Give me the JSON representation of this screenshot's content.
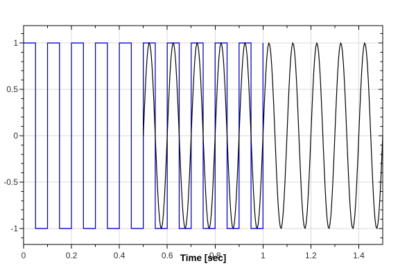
{
  "chart_data": {
    "type": "line",
    "title": "",
    "xlabel": "Time [sec]",
    "ylabel": "",
    "xlim": [
      0,
      1.5
    ],
    "ylim": [
      -1.172,
      1.187
    ],
    "grid": true,
    "legend": "none",
    "x_major_ticks": [
      0,
      0.2,
      0.4,
      0.6,
      0.8,
      1,
      1.2,
      1.4
    ],
    "x_tick_labels": [
      "0",
      "0.2",
      "0.4",
      "0.6",
      "0.8",
      "1",
      "1.2",
      "1.4"
    ],
    "x_minor_step": 0.1,
    "y_major_ticks": [
      -1,
      -0.5,
      0,
      0.5,
      1
    ],
    "y_tick_labels": [
      "-1",
      "-0.5",
      "0",
      "0.5",
      "1"
    ],
    "y_minor_step": 0.1,
    "series": [
      {
        "name": "square-wave",
        "waveform": "square",
        "frequency_hz": 10,
        "amplitude": 1,
        "t_start": 0,
        "t_end": 1.0,
        "color": "#0000dd",
        "line_width": 1.3
      },
      {
        "name": "sine-wave",
        "waveform": "sine",
        "frequency_hz": 10,
        "amplitude": 1,
        "t_start": 0.5,
        "t_end": 1.5,
        "sample_step": 0.004,
        "color": "#000000",
        "line_width": 1.2
      }
    ],
    "colors": {
      "background": "#ffffff",
      "grid": "#d9d9d9",
      "axis": "#000000",
      "tick_text": "#303030"
    }
  }
}
